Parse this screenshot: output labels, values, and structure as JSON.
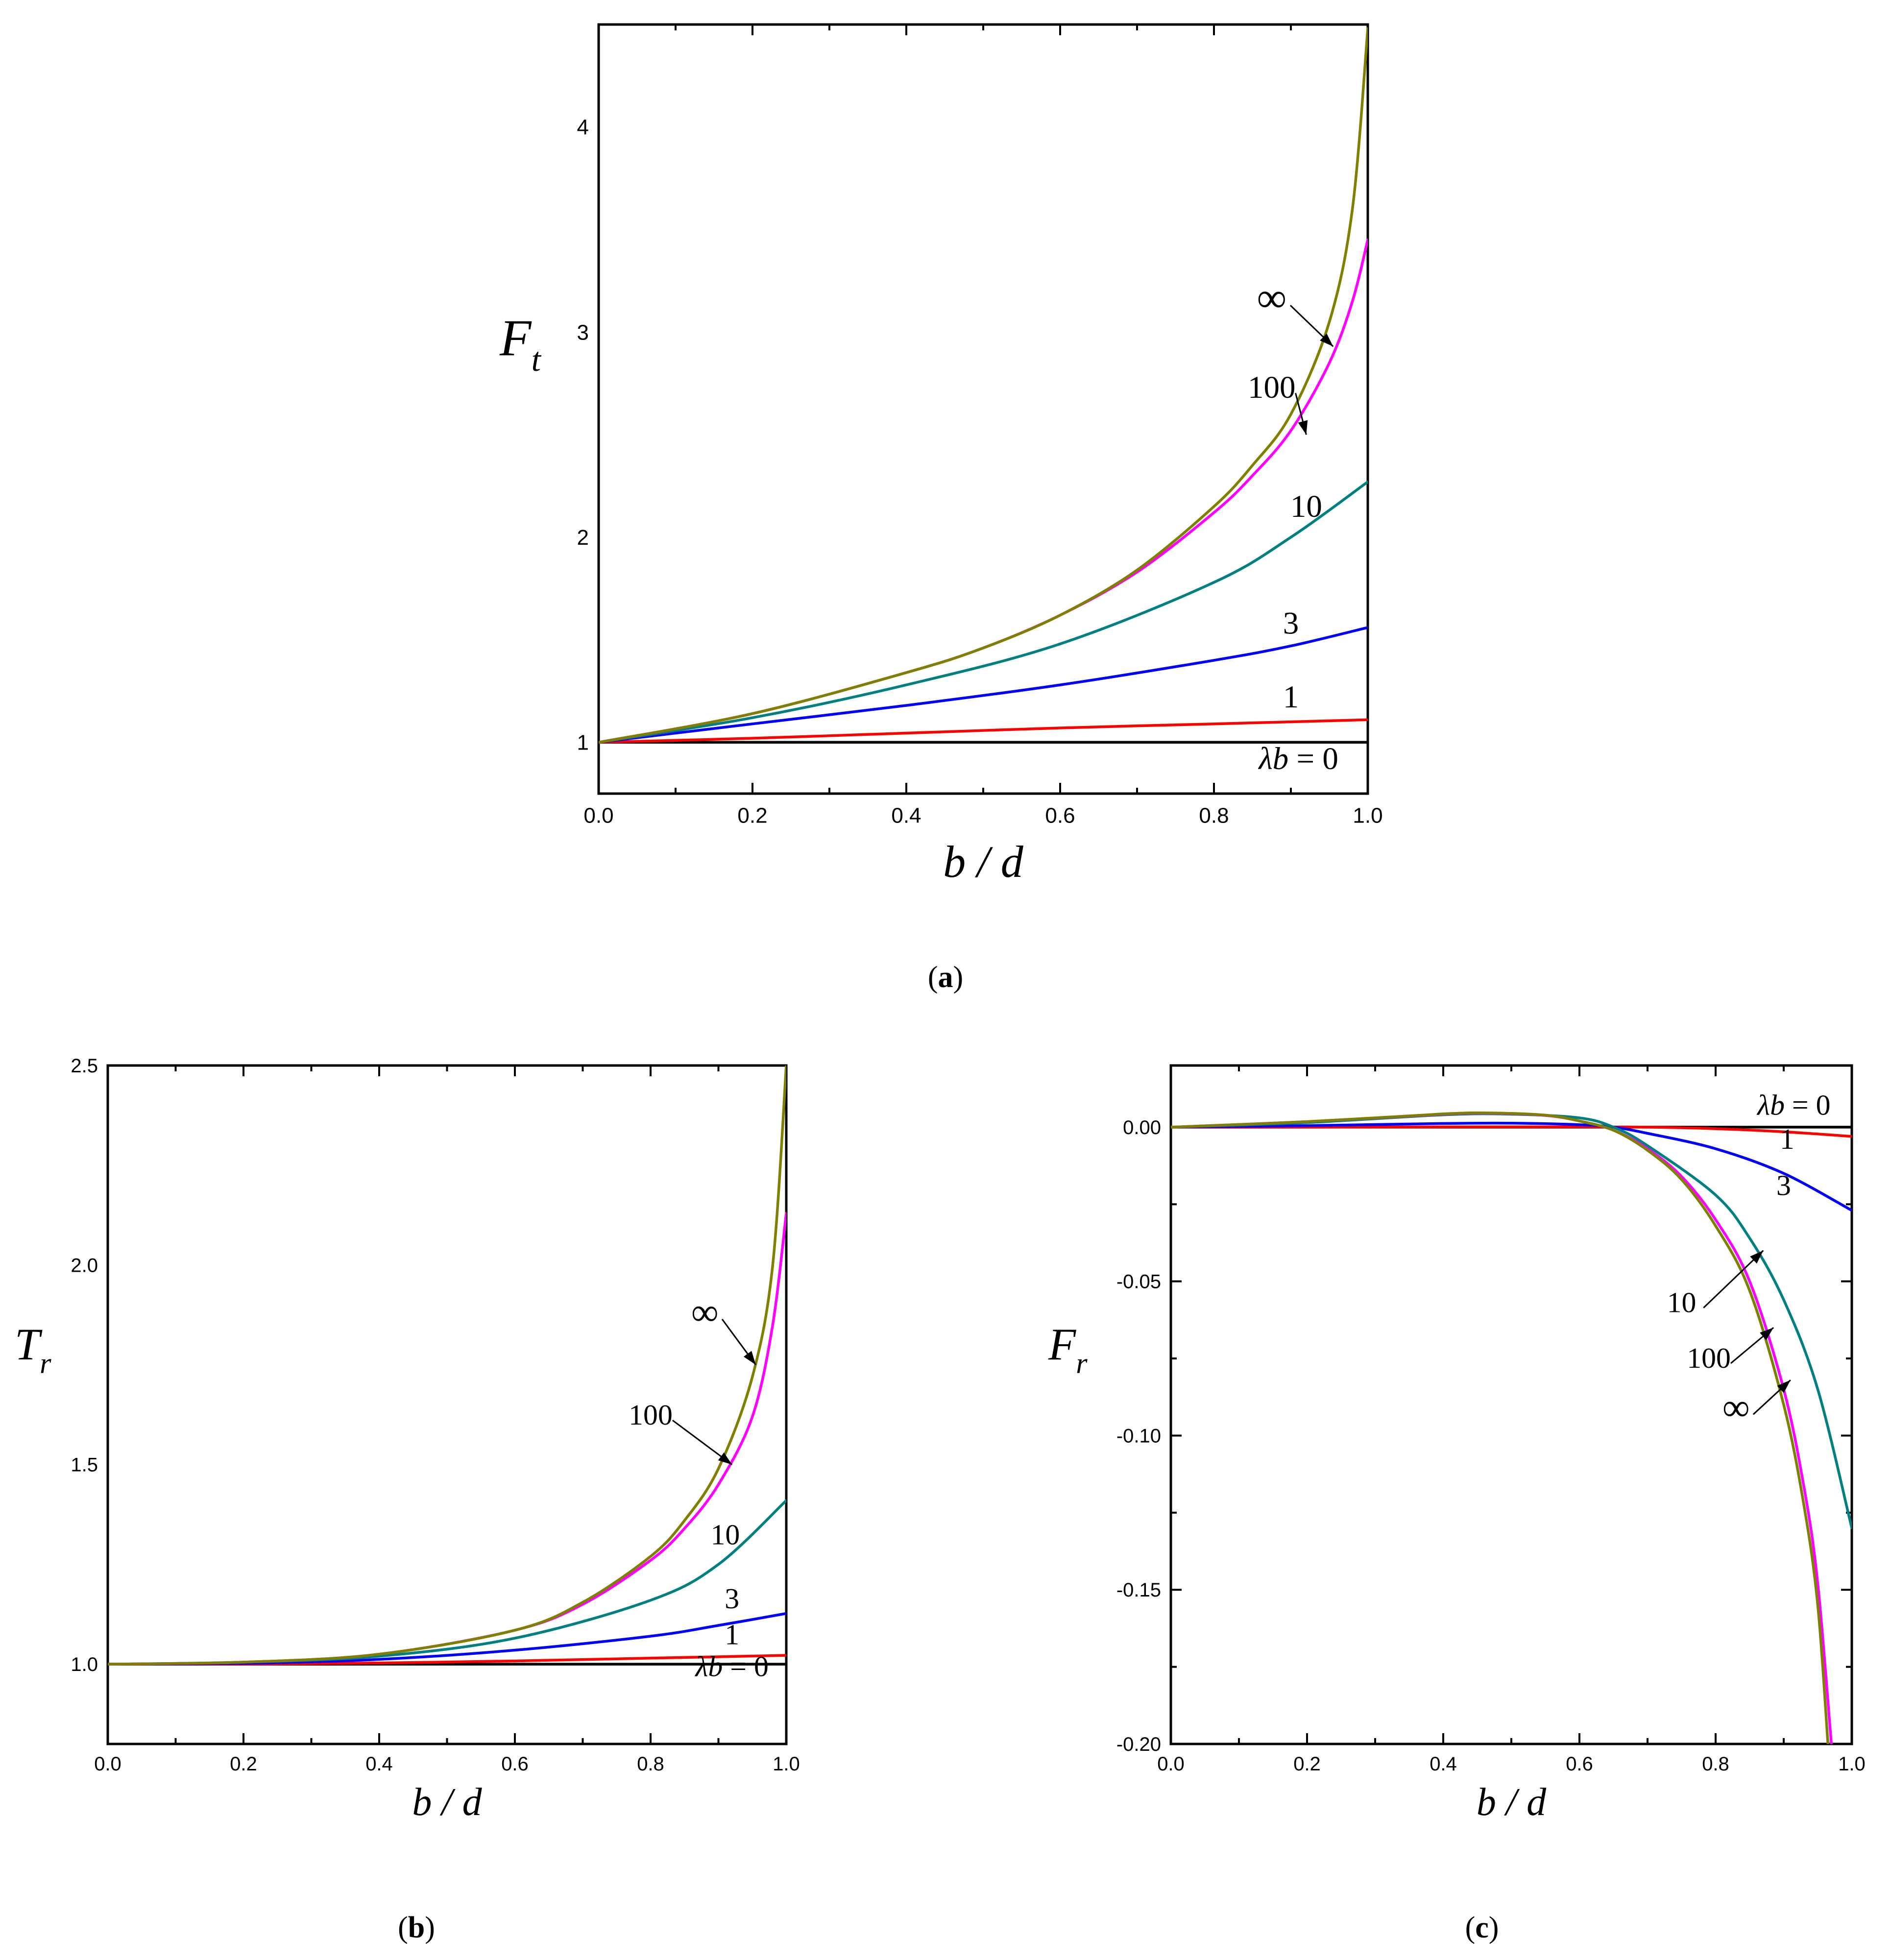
{
  "colors": {
    "0": "#000000",
    "1": "#ff0000",
    "3": "#0000ff",
    "10": "#008080",
    "100": "#ff00ff",
    "inf": "#808000"
  },
  "chart_data": [
    {
      "type": "line",
      "panel_label": "a",
      "xlabel": "b / d",
      "ylabel_main": "F",
      "ylabel_sub": "t",
      "xlim": [
        0,
        1
      ],
      "ylim": [
        0.75,
        4.5
      ],
      "xticks": [
        "0.0",
        "0.2",
        "0.4",
        "0.6",
        "0.8",
        "1.0"
      ],
      "yticks": [
        "1",
        "2",
        "3",
        "4"
      ],
      "grid": false,
      "series": [
        {
          "key": "0",
          "x": [
            0,
            0.2,
            0.4,
            0.6,
            0.8,
            1.0
          ],
          "y": [
            1,
            1,
            1,
            1,
            1,
            1
          ]
        },
        {
          "key": "1",
          "x": [
            0,
            0.2,
            0.4,
            0.6,
            0.8,
            1.0
          ],
          "y": [
            1.0,
            1.02,
            1.045,
            1.07,
            1.09,
            1.11
          ]
        },
        {
          "key": "3",
          "x": [
            0,
            0.2,
            0.4,
            0.6,
            0.8,
            0.9,
            1.0
          ],
          "y": [
            1.0,
            1.09,
            1.18,
            1.28,
            1.4,
            1.47,
            1.56
          ]
        },
        {
          "key": "10",
          "x": [
            0,
            0.2,
            0.4,
            0.6,
            0.8,
            0.9,
            1.0
          ],
          "y": [
            1.0,
            1.12,
            1.28,
            1.48,
            1.78,
            2.0,
            2.27
          ]
        },
        {
          "key": "100",
          "x": [
            0,
            0.2,
            0.4,
            0.5,
            0.6,
            0.7,
            0.8,
            0.85,
            0.9,
            0.95,
            0.98,
            1.0
          ],
          "y": [
            1.0,
            1.14,
            1.34,
            1.46,
            1.62,
            1.83,
            2.12,
            2.3,
            2.52,
            2.85,
            3.15,
            3.45
          ]
        },
        {
          "key": "inf",
          "x": [
            0,
            0.2,
            0.4,
            0.5,
            0.6,
            0.7,
            0.8,
            0.85,
            0.9,
            0.95,
            0.98,
            1.0
          ],
          "y": [
            1.0,
            1.14,
            1.34,
            1.46,
            1.62,
            1.84,
            2.15,
            2.35,
            2.6,
            3.05,
            3.6,
            4.48
          ]
        }
      ],
      "labels": [
        {
          "text": "∞",
          "x": 0.875,
          "y": 3.1,
          "size": 34,
          "arrow_to": [
            0.955,
            2.93
          ],
          "big": true
        },
        {
          "text": "100",
          "x": 0.875,
          "y": 2.68,
          "size": 26,
          "arrow_to": [
            0.92,
            2.5
          ]
        },
        {
          "text": "10",
          "x": 0.92,
          "y": 2.1,
          "size": 26
        },
        {
          "text": "3",
          "x": 0.9,
          "y": 1.53,
          "size": 26
        },
        {
          "text": "1",
          "x": 0.9,
          "y": 1.17,
          "size": 26
        },
        {
          "text": "λb = 0",
          "x": 0.91,
          "y": 0.87,
          "size": 26,
          "italic_lambda": true
        }
      ]
    },
    {
      "type": "line",
      "panel_label": "b",
      "xlabel": "b / d",
      "ylabel_main": "T",
      "ylabel_sub": "r",
      "xlim": [
        0,
        1
      ],
      "ylim": [
        0.8,
        2.5
      ],
      "xticks": [
        "0.0",
        "0.2",
        "0.4",
        "0.6",
        "0.8",
        "1.0"
      ],
      "yticks": [
        "1.0",
        "1.5",
        "2.0",
        "2.5"
      ],
      "grid": false,
      "series": [
        {
          "key": "0",
          "x": [
            0,
            0.2,
            0.4,
            0.6,
            0.8,
            1.0
          ],
          "y": [
            1,
            1,
            1,
            1,
            1,
            1
          ]
        },
        {
          "key": "1",
          "x": [
            0,
            0.2,
            0.4,
            0.6,
            0.8,
            1.0
          ],
          "y": [
            1.0,
            1.0,
            1.003,
            1.008,
            1.015,
            1.022
          ]
        },
        {
          "key": "3",
          "x": [
            0,
            0.2,
            0.4,
            0.6,
            0.8,
            0.9,
            1.0
          ],
          "y": [
            1.0,
            1.002,
            1.012,
            1.035,
            1.07,
            1.097,
            1.127
          ]
        },
        {
          "key": "10",
          "x": [
            0,
            0.2,
            0.4,
            0.6,
            0.8,
            0.9,
            1.0
          ],
          "y": [
            1.0,
            1.005,
            1.02,
            1.065,
            1.16,
            1.25,
            1.41
          ]
        },
        {
          "key": "100",
          "x": [
            0,
            0.2,
            0.4,
            0.6,
            0.7,
            0.8,
            0.85,
            0.9,
            0.95,
            0.98,
            1.0
          ],
          "y": [
            1.0,
            1.005,
            1.025,
            1.085,
            1.15,
            1.26,
            1.34,
            1.45,
            1.62,
            1.85,
            2.13
          ]
        },
        {
          "key": "inf",
          "x": [
            0,
            0.2,
            0.4,
            0.6,
            0.7,
            0.8,
            0.85,
            0.9,
            0.95,
            0.98,
            1.0
          ],
          "y": [
            1.0,
            1.005,
            1.025,
            1.085,
            1.155,
            1.27,
            1.36,
            1.49,
            1.72,
            2.0,
            2.5
          ]
        }
      ],
      "labels": [
        {
          "text": "∞",
          "x": 0.88,
          "y": 1.85,
          "size": 34,
          "arrow_to": [
            0.955,
            1.75
          ],
          "big": true
        },
        {
          "text": "100",
          "x": 0.8,
          "y": 1.6,
          "size": 26,
          "arrow_to": [
            0.92,
            1.5
          ]
        },
        {
          "text": "10",
          "x": 0.91,
          "y": 1.3,
          "size": 26
        },
        {
          "text": "3",
          "x": 0.92,
          "y": 1.14,
          "size": 26
        },
        {
          "text": "1",
          "x": 0.92,
          "y": 1.05,
          "size": 26
        },
        {
          "text": "λb = 0",
          "x": 0.92,
          "y": 0.97,
          "size": 26,
          "italic_lambda": true
        }
      ]
    },
    {
      "type": "line",
      "panel_label": "c",
      "xlabel": "b / d",
      "ylabel_main": "F",
      "ylabel_sub": "r",
      "xlim": [
        0,
        1
      ],
      "ylim": [
        -0.2,
        0.02
      ],
      "xticks": [
        "0.0",
        "0.2",
        "0.4",
        "0.6",
        "0.8",
        "1.0"
      ],
      "yticks": [
        "0.00",
        "-0.05",
        "-0.10",
        "-0.15",
        "-0.20"
      ],
      "ytick_values": [
        0,
        -0.05,
        -0.1,
        -0.15,
        -0.2
      ],
      "grid": false,
      "series": [
        {
          "key": "0",
          "x": [
            0,
            0.2,
            0.4,
            0.6,
            0.8,
            1.0
          ],
          "y": [
            0,
            0,
            0,
            0,
            0,
            0
          ]
        },
        {
          "key": "1",
          "x": [
            0,
            0.2,
            0.4,
            0.6,
            0.7,
            0.8,
            0.9,
            1.0
          ],
          "y": [
            0,
            0.0,
            0.0001,
            0.0001,
            0,
            -0.0005,
            -0.0015,
            -0.003
          ]
        },
        {
          "key": "3",
          "x": [
            0,
            0.2,
            0.4,
            0.5,
            0.6,
            0.65,
            0.7,
            0.8,
            0.9,
            1.0
          ],
          "y": [
            0,
            0.0005,
            0.0012,
            0.0013,
            0.0008,
            0.0,
            -0.002,
            -0.007,
            -0.015,
            -0.027
          ]
        },
        {
          "key": "10",
          "x": [
            0,
            0.2,
            0.4,
            0.5,
            0.6,
            0.65,
            0.7,
            0.8,
            0.85,
            0.9,
            0.95,
            1.0
          ],
          "y": [
            0,
            0.0015,
            0.004,
            0.0042,
            0.003,
            0.0,
            -0.006,
            -0.022,
            -0.036,
            -0.056,
            -0.085,
            -0.13
          ]
        },
        {
          "key": "100",
          "x": [
            0,
            0.2,
            0.4,
            0.47,
            0.55,
            0.6,
            0.65,
            0.7,
            0.75,
            0.8,
            0.85,
            0.9,
            0.93,
            0.95,
            0.97
          ],
          "y": [
            0,
            0.0018,
            0.0042,
            0.0045,
            0.0038,
            0.002,
            -0.001,
            -0.007,
            -0.016,
            -0.03,
            -0.05,
            -0.085,
            -0.117,
            -0.148,
            -0.2
          ]
        },
        {
          "key": "inf",
          "x": [
            0,
            0.2,
            0.4,
            0.47,
            0.55,
            0.6,
            0.65,
            0.7,
            0.75,
            0.8,
            0.85,
            0.9,
            0.93,
            0.95,
            0.965
          ],
          "y": [
            0,
            0.0018,
            0.0043,
            0.0046,
            0.0039,
            0.002,
            -0.001,
            -0.0075,
            -0.017,
            -0.032,
            -0.053,
            -0.09,
            -0.123,
            -0.155,
            -0.2
          ]
        }
      ],
      "labels": [
        {
          "text": "λb = 0",
          "x": 0.915,
          "y": 0.004,
          "size": 26,
          "italic_lambda": true
        },
        {
          "text": "1",
          "x": 0.905,
          "y": -0.007,
          "size": 26
        },
        {
          "text": "3",
          "x": 0.9,
          "y": -0.022,
          "size": 26
        },
        {
          "text": "10",
          "x": 0.75,
          "y": -0.06,
          "size": 26,
          "arrow_to": [
            0.87,
            -0.04
          ]
        },
        {
          "text": "100",
          "x": 0.79,
          "y": -0.078,
          "size": 26,
          "arrow_to": [
            0.885,
            -0.065
          ]
        },
        {
          "text": "∞",
          "x": 0.83,
          "y": -0.095,
          "size": 34,
          "arrow_to": [
            0.91,
            -0.082
          ],
          "big": true
        }
      ]
    }
  ]
}
